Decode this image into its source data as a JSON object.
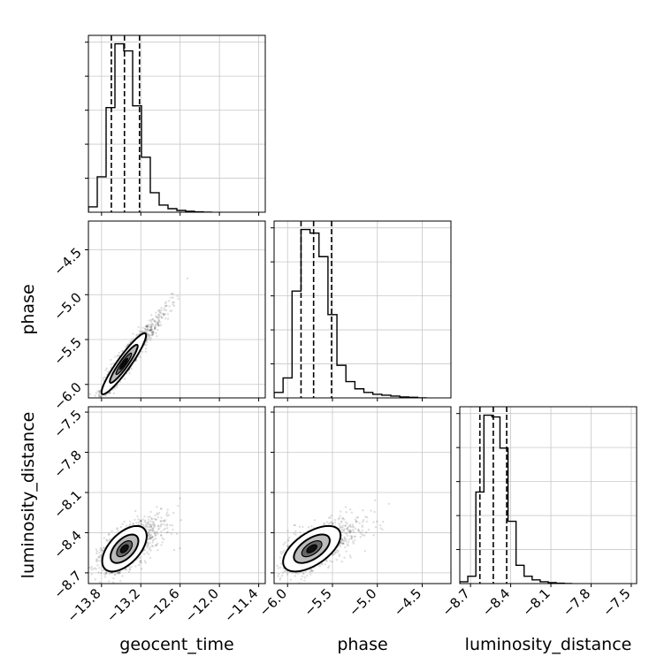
{
  "chart_data": {
    "type": "corner",
    "parameters": [
      "geocent_time",
      "phase",
      "luminosity_distance"
    ],
    "axis_labels": {
      "x": [
        "geocent_time",
        "phase",
        "luminosity_distance"
      ],
      "y": [
        "",
        "phase",
        "luminosity_distance"
      ]
    },
    "ranges": {
      "geocent_time": [
        -14.0,
        -11.3
      ],
      "phase": [
        -6.15,
        -4.18
      ],
      "luminosity_distance": [
        -8.78,
        -7.46
      ]
    },
    "ticks": {
      "geocent_time": {
        "values": [
          -13.8,
          -13.2,
          -12.6,
          -12.0,
          -11.4
        ],
        "labels": [
          "−13.8",
          "−13.2",
          "−12.6",
          "−12.0",
          "−11.4"
        ]
      },
      "phase": {
        "values": [
          -6.0,
          -5.5,
          -5.0,
          -4.5
        ],
        "labels": [
          "−6.0",
          "−5.5",
          "−5.0",
          "−4.5"
        ]
      },
      "luminosity_distance": {
        "values": [
          -8.7,
          -8.4,
          -8.1,
          -7.8,
          -7.5
        ],
        "labels": [
          "−8.7",
          "−8.4",
          "−8.1",
          "−7.8",
          "−7.5"
        ]
      }
    },
    "marginals": {
      "geocent_time": {
        "bin_edges": [
          -14.0,
          -13.865,
          -13.73,
          -13.595,
          -13.46,
          -13.325,
          -13.19,
          -13.055,
          -12.92,
          -12.785,
          -12.65,
          -12.515,
          -12.38,
          -12.245,
          -12.11
        ],
        "counts": [
          0.03,
          0.2,
          0.59,
          0.95,
          0.91,
          0.6,
          0.31,
          0.11,
          0.04,
          0.02,
          0.01,
          0.005,
          0.002,
          0.0
        ],
        "quantiles": [
          -13.65,
          -13.45,
          -13.22
        ]
      },
      "phase": {
        "bin_edges": [
          -6.15,
          -6.05,
          -5.95,
          -5.85,
          -5.75,
          -5.65,
          -5.55,
          -5.45,
          -5.35,
          -5.25,
          -5.15,
          -5.05,
          -4.95,
          -4.85,
          -4.75,
          -4.65,
          -4.55,
          -4.45
        ],
        "counts": [
          0.03,
          0.11,
          0.59,
          0.93,
          0.91,
          0.78,
          0.46,
          0.18,
          0.09,
          0.05,
          0.03,
          0.02,
          0.015,
          0.01,
          0.005,
          0.003,
          0.0
        ],
        "quantiles": [
          -5.85,
          -5.71,
          -5.51
        ]
      },
      "luminosity_distance": {
        "bin_edges": [
          -8.78,
          -8.72,
          -8.66,
          -8.6,
          -8.54,
          -8.48,
          -8.42,
          -8.36,
          -8.3,
          -8.24,
          -8.18,
          -8.12,
          -8.06,
          -8.0,
          -7.94
        ],
        "counts": [
          0.01,
          0.04,
          0.5,
          0.92,
          0.91,
          0.74,
          0.34,
          0.1,
          0.04,
          0.02,
          0.01,
          0.005,
          0.002,
          0.0
        ],
        "quantiles": [
          -8.63,
          -8.53,
          -8.43
        ]
      }
    },
    "pairs": [
      {
        "x": "geocent_time",
        "y": "phase",
        "center": [
          -13.46,
          -5.77
        ],
        "sigma": [
          0.17,
          0.17
        ],
        "corr": 0.93
      },
      {
        "x": "geocent_time",
        "y": "luminosity_distance",
        "center": [
          -13.45,
          -8.52
        ],
        "sigma": [
          0.17,
          0.085
        ],
        "corr": 0.55
      },
      {
        "x": "phase",
        "y": "luminosity_distance",
        "center": [
          -5.73,
          -8.52
        ],
        "sigma": [
          0.16,
          0.085
        ],
        "corr": 0.58
      }
    ],
    "quantile_style": "dashed",
    "grid": true,
    "color": "#000000"
  }
}
